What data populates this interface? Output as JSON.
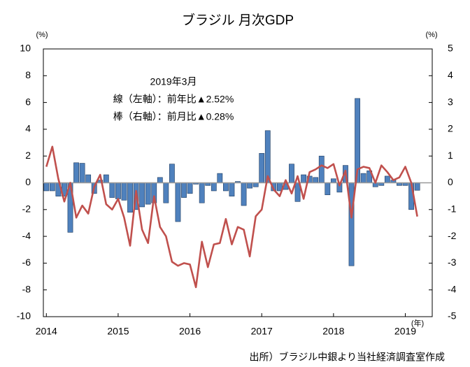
{
  "chart_data": {
    "type": "bar_line",
    "title": "ブラジル 月次GDP",
    "y_unit": "(%)",
    "y2_unit": "(%)",
    "x_unit": "(年)",
    "annotations": [
      "2019年3月",
      "線（左軸）：前年比▲2.52%",
      "棒（右軸）：前月比▲0.28%"
    ],
    "source": "出所）ブラジル中銀より当社経済調査室作成",
    "categories": [
      "2014",
      null,
      null,
      null,
      null,
      null,
      null,
      null,
      null,
      null,
      null,
      null,
      "2015",
      null,
      null,
      null,
      null,
      null,
      null,
      null,
      null,
      null,
      null,
      null,
      "2016",
      null,
      null,
      null,
      null,
      null,
      null,
      null,
      null,
      null,
      null,
      null,
      "2017",
      null,
      null,
      null,
      null,
      null,
      null,
      null,
      null,
      null,
      null,
      null,
      "2018",
      null,
      null,
      null,
      null,
      null,
      null,
      null,
      null,
      null,
      null,
      null,
      "2019",
      null,
      null
    ],
    "series": [
      {
        "name": "前月比",
        "kind": "bar",
        "axis": "y2",
        "color": "#4f81bd",
        "values": [
          -0.3,
          -0.3,
          -0.5,
          -0.5,
          -1.85,
          0.75,
          0.73,
          0.3,
          -0.4,
          0.1,
          0.3,
          -0.55,
          -0.6,
          -0.65,
          -1.1,
          -1.0,
          -0.9,
          -0.8,
          -0.75,
          0.2,
          -0.75,
          0.7,
          -1.45,
          -0.55,
          -0.4,
          -0.05,
          -0.75,
          -0.1,
          -0.3,
          0.35,
          -0.3,
          -0.5,
          0.05,
          -0.85,
          -0.2,
          -0.15,
          1.1,
          1.95,
          -0.3,
          -0.3,
          -0.25,
          0.7,
          -0.7,
          0.3,
          0.25,
          0.2,
          1.0,
          -0.45,
          0.15,
          -0.35,
          0.65,
          -3.1,
          3.15,
          0.35,
          0.45,
          -0.15,
          -0.1,
          0.25,
          0.1,
          -0.1,
          -0.1,
          -1.0,
          -0.28
        ]
      },
      {
        "name": "前年比",
        "kind": "line",
        "axis": "y",
        "color": "#c0504d",
        "values": [
          1.2,
          2.7,
          0.3,
          -1.4,
          0.0,
          -2.6,
          -1.7,
          -2.3,
          -0.3,
          0.6,
          -1.6,
          -2.0,
          -1.2,
          -2.6,
          -4.7,
          -0.6,
          -3.5,
          -4.5,
          -1.0,
          -3.3,
          -4.0,
          -5.9,
          -6.2,
          -6.0,
          -6.1,
          -7.8,
          -4.4,
          -6.3,
          -4.6,
          -4.5,
          -2.7,
          -4.6,
          -3.3,
          -3.5,
          -5.5,
          -2.5,
          -2.0,
          0.5,
          -0.5,
          -1.0,
          0.2,
          -0.8,
          0.5,
          -1.2,
          0.8,
          1.0,
          1.3,
          1.1,
          1.4,
          -0.2,
          0.9,
          -2.6,
          1.0,
          1.2,
          1.1,
          0.0,
          1.3,
          0.8,
          0.2,
          0.4,
          1.2,
          0.0,
          -2.52
        ]
      }
    ],
    "ylim": [
      -10,
      10
    ],
    "yticks": [
      -10,
      -8,
      -6,
      -4,
      -2,
      0,
      2,
      4,
      6,
      8,
      10
    ],
    "y2lim": [
      -5,
      5
    ],
    "y2ticks": [
      -5,
      -4,
      -3,
      -2,
      -1,
      0,
      1,
      2,
      3,
      4,
      5
    ]
  }
}
